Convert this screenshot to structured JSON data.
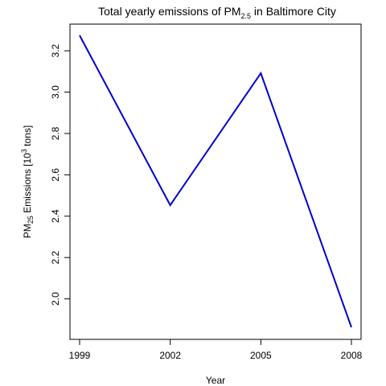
{
  "chart_data": {
    "type": "line",
    "title": {
      "prefix": "Total yearly emissions of PM",
      "subscript": "2.5",
      "suffix": " in Baltimore City"
    },
    "xlabel": "Year",
    "ylabel": {
      "prefix": "PM",
      "subscript": "25",
      "middle": " Emissions  [10",
      "superscript": "3",
      "suffix": " tons]"
    },
    "x": [
      1999,
      2002,
      2005,
      2008
    ],
    "x_ticks": [
      "1999",
      "2002",
      "2005",
      "2008"
    ],
    "y_ticks": [
      "2.0",
      "2.2",
      "2.4",
      "2.6",
      "2.8",
      "3.0",
      "3.2"
    ],
    "y_tick_values": [
      2.0,
      2.2,
      2.4,
      2.6,
      2.8,
      3.0,
      3.2
    ],
    "xlim": [
      1999,
      2008
    ],
    "ylim": [
      1.8625,
      3.2745
    ],
    "series": [
      {
        "values": [
          3.2745,
          2.4532,
          3.0915,
          1.8625
        ],
        "color": "#0000CD"
      }
    ],
    "grid": false
  }
}
